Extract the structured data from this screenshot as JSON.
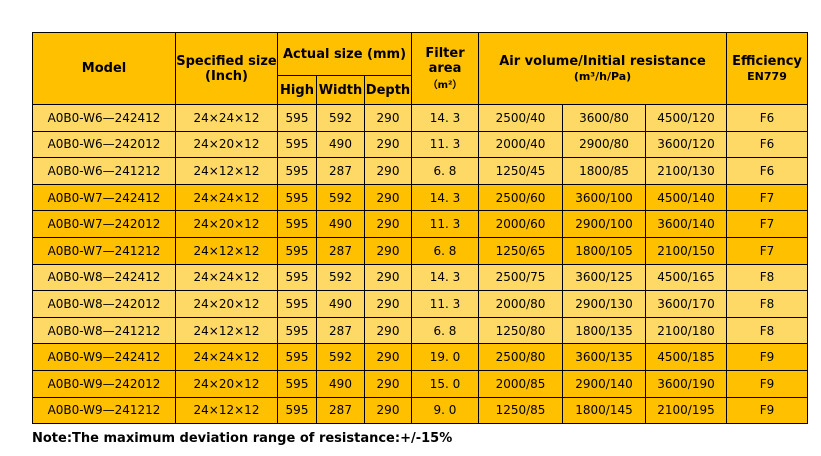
{
  "header": {
    "model": "Model",
    "specified_size": "Specified size",
    "specified_unit": "(Inch)",
    "actual_size": "Actual size (mm)",
    "high": "High",
    "width": "Width",
    "depth": "Depth",
    "filter_line1": "Filter",
    "filter_line2": "area",
    "filter_unit": "（m²）",
    "air_volume": "Air volume/Initial resistance",
    "air_unit": "(m³/h/Pa)",
    "efficiency": "Efficiency",
    "efficiency_std": "EN779"
  },
  "table": {
    "rows": [
      [
        "A0B0-W6—242412",
        "24×24×12",
        "595",
        "592",
        "290",
        "14. 3",
        "2500/40",
        "3600/80",
        "4500/120",
        "F6"
      ],
      [
        "A0B0-W6—242012",
        "24×20×12",
        "595",
        "490",
        "290",
        "11. 3",
        "2000/40",
        "2900/80",
        "3600/120",
        "F6"
      ],
      [
        "A0B0-W6—241212",
        "24×12×12",
        "595",
        "287",
        "290",
        "6. 8",
        "1250/45",
        "1800/85",
        "2100/130",
        "F6"
      ],
      [
        "A0B0-W7—242412",
        "24×24×12",
        "595",
        "592",
        "290",
        "14. 3",
        "2500/60",
        "3600/100",
        "4500/140",
        "F7"
      ],
      [
        "A0B0-W7—242012",
        "24×20×12",
        "595",
        "490",
        "290",
        "11. 3",
        "2000/60",
        "2900/100",
        "3600/140",
        "F7"
      ],
      [
        "A0B0-W7—241212",
        "24×12×12",
        "595",
        "287",
        "290",
        "6. 8",
        "1250/65",
        "1800/105",
        "2100/150",
        "F7"
      ],
      [
        "A0B0-W8—242412",
        "24×24×12",
        "595",
        "592",
        "290",
        "14. 3",
        "2500/75",
        "3600/125",
        "4500/165",
        "F8"
      ],
      [
        "A0B0-W8—242012",
        "24×20×12",
        "595",
        "490",
        "290",
        "11. 3",
        "2000/80",
        "2900/130",
        "3600/170",
        "F8"
      ],
      [
        "A0B0-W8—241212",
        "24×12×12",
        "595",
        "287",
        "290",
        "6. 8",
        "1250/80",
        "1800/135",
        "2100/180",
        "F8"
      ],
      [
        "A0B0-W9—242412",
        "24×24×12",
        "595",
        "592",
        "290",
        "19. 0",
        "2500/80",
        "3600/135",
        "4500/185",
        "F9"
      ],
      [
        "A0B0-W9—242012",
        "24×20×12",
        "595",
        "490",
        "290",
        "15. 0",
        "2000/85",
        "2900/140",
        "3600/190",
        "F9"
      ],
      [
        "A0B0-W9—241212",
        "24×12×12",
        "595",
        "287",
        "290",
        "9. 0",
        "1250/85",
        "1800/145",
        "2100/195",
        "F9"
      ]
    ]
  },
  "note": "Note:The maximum deviation range of resistance:+/-15%"
}
